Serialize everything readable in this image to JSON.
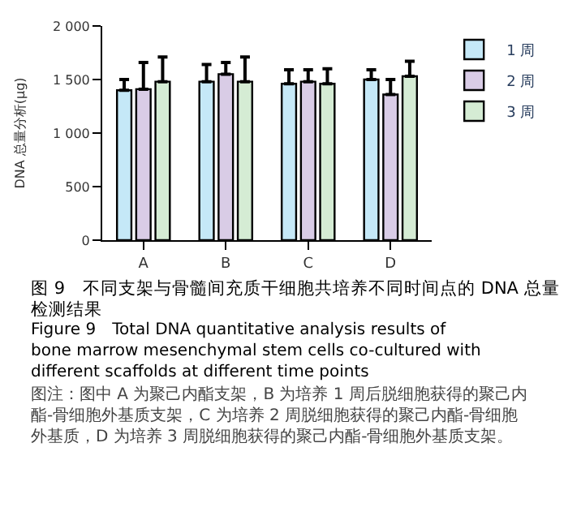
{
  "chart_data": {
    "type": "bar",
    "title": "图 9　不同支架与骨髓间充质干细胞共培养不同时间点的 DNA 总量检测结果",
    "subtitle": "Figure 9　Total DNA quantitative analysis results of bone marrow mesenchymal stem cells co-cultured with different scaffolds at different time points",
    "annotations": [
      "图注：图中 A 为聚己内酯支架，B 为培养 1 周后脱细胞获得的聚己内酯-骨细胞外基质支架，C 为培养 2 周脱细胞获得的聚己内酯-骨细胞外基质，D 为培养 3 周脱细胞获得的聚己内酯-骨细胞外基质支架。"
    ],
    "ylabel": "DNA 总量分析(μg)",
    "categories": [
      "A",
      "B",
      "C",
      "D"
    ],
    "series": [
      {
        "name": "1 周",
        "color": "#c5e8f7",
        "values": [
          1400,
          1480,
          1460,
          1500
        ],
        "errors": [
          [
            1400,
            1500
          ],
          [
            1480,
            1640
          ],
          [
            1460,
            1590
          ],
          [
            1500,
            1590
          ]
        ]
      },
      {
        "name": "2 周",
        "color": "#d9cce6",
        "values": [
          1410,
          1550,
          1480,
          1360
        ],
        "errors": [
          [
            1410,
            1660
          ],
          [
            1550,
            1660
          ],
          [
            1480,
            1590
          ],
          [
            1360,
            1500
          ]
        ]
      },
      {
        "name": "3 周",
        "color": "#d5ecd4",
        "values": [
          1480,
          1480,
          1460,
          1530
        ],
        "errors": [
          [
            1480,
            1710
          ],
          [
            1480,
            1710
          ],
          [
            1460,
            1600
          ],
          [
            1530,
            1670
          ]
        ]
      }
    ],
    "ylim": [
      0,
      2000
    ],
    "yticks": [
      {
        "value": 0,
        "label": "0"
      },
      {
        "value": 500,
        "label": "500"
      },
      {
        "value": 1000,
        "label": "1 000"
      },
      {
        "value": 1500,
        "label": "1 500"
      },
      {
        "value": 2000,
        "label": "2 000"
      }
    ],
    "legend": "top right"
  }
}
